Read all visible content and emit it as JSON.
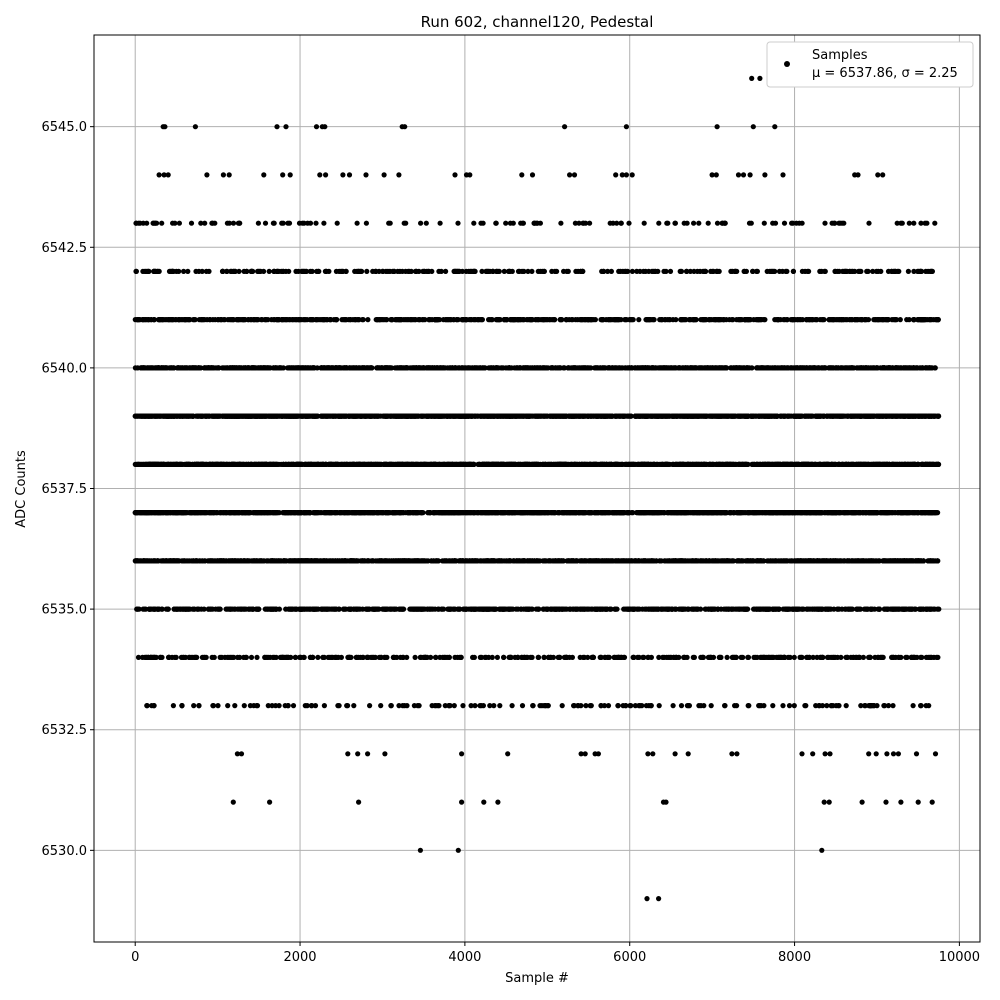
{
  "chart_data": {
    "type": "scatter",
    "title": "Run 602, channel120, Pedestal",
    "xlabel": "Sample #",
    "ylabel": "ADC Counts",
    "xlim": [
      -500,
      10250
    ],
    "ylim": [
      6528.1,
      6546.9
    ],
    "xticks": [
      0,
      2000,
      4000,
      6000,
      8000,
      10000
    ],
    "xtick_labels": [
      "0",
      "2000",
      "4000",
      "6000",
      "8000",
      "10000"
    ],
    "yticks": [
      6530.0,
      6532.5,
      6535.0,
      6537.5,
      6540.0,
      6542.5,
      6545.0
    ],
    "ytick_labels": [
      "6530.0",
      "6532.5",
      "6535.0",
      "6537.5",
      "6540.0",
      "6542.5",
      "6545.0"
    ],
    "grid": true,
    "legend_position": "top-right",
    "marker_color": "#000000",
    "series": [
      {
        "name": "Samples",
        "stats_label": "μ = 6537.86, σ = 2.25",
        "mean": 6537.86,
        "std": 2.25,
        "n_samples": 9750,
        "level_ranges": [
          {
            "y": 6536,
            "x_ranges": [
              [
                0,
                9750
              ]
            ]
          },
          {
            "y": 6537,
            "x_ranges": [
              [
                0,
                9750
              ]
            ]
          },
          {
            "y": 6538,
            "x_ranges": [
              [
                0,
                9750
              ]
            ]
          },
          {
            "y": 6539,
            "x_ranges": [
              [
                0,
                9750
              ]
            ]
          },
          {
            "y": 6540,
            "x_ranges": [
              [
                0,
                9750
              ]
            ]
          },
          {
            "y": 6535,
            "x_ranges": [
              [
                0,
                9750
              ]
            ]
          },
          {
            "y": 6541,
            "x_ranges": [
              [
                0,
                9750
              ]
            ]
          },
          {
            "y": 6542,
            "x_ranges": [
              [
                0,
                9750
              ]
            ]
          },
          {
            "y": 6534,
            "x_ranges": [
              [
                0,
                9750
              ]
            ]
          },
          {
            "y": 6543,
            "x_ranges": [
              [
                0,
                9750
              ]
            ]
          },
          {
            "y": 6533,
            "x_ranges": [
              [
                0,
                9750
              ]
            ]
          }
        ],
        "sparse_points": [
          [
            340,
            6545
          ],
          [
            360,
            6545
          ],
          [
            730,
            6545
          ],
          [
            1720,
            6545
          ],
          [
            1830,
            6545
          ],
          [
            2200,
            6545
          ],
          [
            2270,
            6545
          ],
          [
            2300,
            6545
          ],
          [
            3240,
            6545
          ],
          [
            3270,
            6545
          ],
          [
            5210,
            6545
          ],
          [
            5960,
            6545
          ],
          [
            7060,
            6545
          ],
          [
            7500,
            6545
          ],
          [
            7760,
            6545
          ],
          [
            7480,
            6546
          ],
          [
            7580,
            6546
          ],
          [
            290,
            6544
          ],
          [
            350,
            6544
          ],
          [
            400,
            6544
          ],
          [
            870,
            6544
          ],
          [
            1070,
            6544
          ],
          [
            1140,
            6544
          ],
          [
            1560,
            6544
          ],
          [
            1790,
            6544
          ],
          [
            1880,
            6544
          ],
          [
            2240,
            6544
          ],
          [
            2310,
            6544
          ],
          [
            2520,
            6544
          ],
          [
            2600,
            6544
          ],
          [
            2800,
            6544
          ],
          [
            3020,
            6544
          ],
          [
            3200,
            6544
          ],
          [
            3880,
            6544
          ],
          [
            4020,
            6544
          ],
          [
            4060,
            6544
          ],
          [
            4690,
            6544
          ],
          [
            4820,
            6544
          ],
          [
            5270,
            6544
          ],
          [
            5330,
            6544
          ],
          [
            5830,
            6544
          ],
          [
            5910,
            6544
          ],
          [
            5960,
            6544
          ],
          [
            6030,
            6544
          ],
          [
            7000,
            6544
          ],
          [
            7050,
            6544
          ],
          [
            7320,
            6544
          ],
          [
            7380,
            6544
          ],
          [
            7460,
            6544
          ],
          [
            7640,
            6544
          ],
          [
            7860,
            6544
          ],
          [
            8730,
            6544
          ],
          [
            8770,
            6544
          ],
          [
            9010,
            6544
          ],
          [
            9070,
            6544
          ],
          [
            1240,
            6532
          ],
          [
            1290,
            6532
          ],
          [
            2580,
            6532
          ],
          [
            2700,
            6532
          ],
          [
            2820,
            6532
          ],
          [
            3030,
            6532
          ],
          [
            3960,
            6532
          ],
          [
            4520,
            6532
          ],
          [
            5410,
            6532
          ],
          [
            5460,
            6532
          ],
          [
            5580,
            6532
          ],
          [
            5620,
            6532
          ],
          [
            6220,
            6532
          ],
          [
            6280,
            6532
          ],
          [
            6550,
            6532
          ],
          [
            6710,
            6532
          ],
          [
            7240,
            6532
          ],
          [
            7300,
            6532
          ],
          [
            8090,
            6532
          ],
          [
            8220,
            6532
          ],
          [
            8370,
            6532
          ],
          [
            8430,
            6532
          ],
          [
            8900,
            6532
          ],
          [
            8990,
            6532
          ],
          [
            9120,
            6532
          ],
          [
            9200,
            6532
          ],
          [
            9260,
            6532
          ],
          [
            9480,
            6532
          ],
          [
            9710,
            6532
          ],
          [
            1190,
            6531
          ],
          [
            1630,
            6531
          ],
          [
            2710,
            6531
          ],
          [
            3960,
            6531
          ],
          [
            4230,
            6531
          ],
          [
            4400,
            6531
          ],
          [
            6410,
            6531
          ],
          [
            6440,
            6531
          ],
          [
            8360,
            6531
          ],
          [
            8420,
            6531
          ],
          [
            8820,
            6531
          ],
          [
            9110,
            6531
          ],
          [
            9290,
            6531
          ],
          [
            9500,
            6531
          ],
          [
            9670,
            6531
          ],
          [
            3460,
            6530
          ],
          [
            3920,
            6530
          ],
          [
            8330,
            6530
          ],
          [
            6210,
            6529
          ],
          [
            6350,
            6529
          ]
        ]
      }
    ]
  }
}
